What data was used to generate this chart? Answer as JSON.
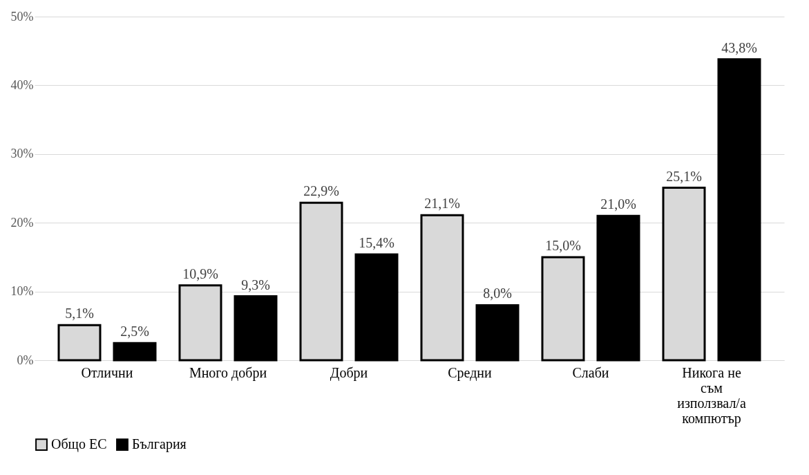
{
  "chart_data": {
    "type": "bar",
    "categories": [
      "Отлични",
      "Много добри",
      "Добри",
      "Средни",
      "Слаби",
      "Никога не съм използвал/а компютър"
    ],
    "series": [
      {
        "name": "Общо ЕС",
        "color": "#d9d9d9",
        "values": [
          5.1,
          10.9,
          22.9,
          21.1,
          15.0,
          25.1
        ],
        "value_labels": [
          "5,1%",
          "10,9%",
          "22,9%",
          "21,1%",
          "15,0%",
          "25,1%"
        ]
      },
      {
        "name": "България",
        "color": "#000000",
        "values": [
          2.5,
          9.3,
          15.4,
          8.0,
          21.0,
          43.8
        ],
        "value_labels": [
          "2,5%",
          "9,3%",
          "15,4%",
          "8,0%",
          "21,0%",
          "43,8%"
        ]
      }
    ],
    "ylim": [
      0,
      50
    ],
    "yticks": [
      {
        "value": 0,
        "label": "0%"
      },
      {
        "value": 10,
        "label": "10%"
      },
      {
        "value": 20,
        "label": "20%"
      },
      {
        "value": 30,
        "label": "30%"
      },
      {
        "value": 40,
        "label": "40%"
      },
      {
        "value": 50,
        "label": "50%"
      }
    ],
    "grid": "y",
    "legend": "bottom"
  }
}
